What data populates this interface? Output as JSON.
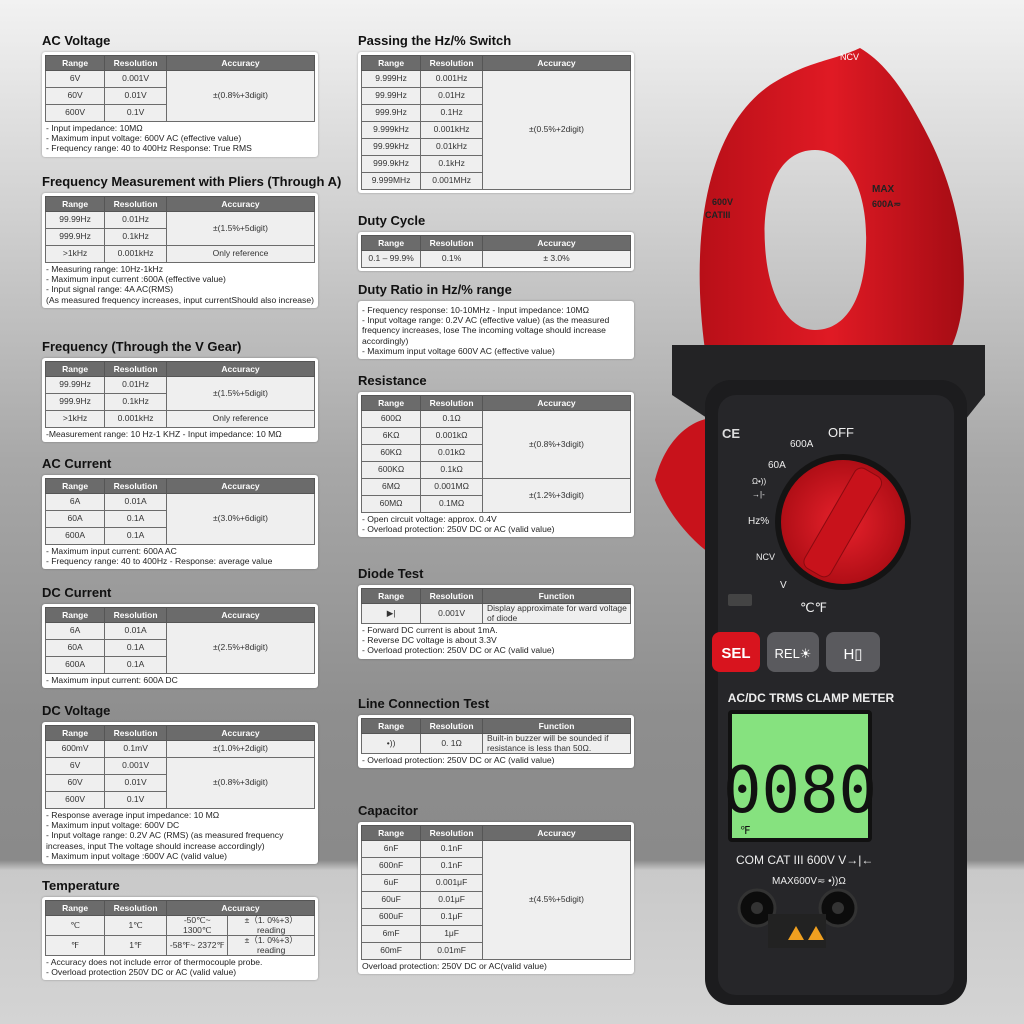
{
  "left": [
    {
      "title": "AC Voltage",
      "headers": [
        {
          "text": "Range"
        },
        {
          "text": "Resolution"
        },
        {
          "text": "Accuracy"
        }
      ],
      "rows": [
        [
          "6V",
          "0.001V",
          {
            "text": "±(0.8%+3digit)",
            "rowspan": 3
          }
        ],
        [
          "60V",
          "0.01V"
        ],
        [
          "600V",
          "0.1V"
        ]
      ],
      "notes": [
        "- Input impedance: 10MΩ",
        "- Maximum input voltage: 600V AC (effective value)",
        "- Frequency range: 40 to 400Hz      Response: True RMS"
      ]
    },
    {
      "title": "Frequency Measurement with Pliers (Through A)",
      "headers": [
        {
          "text": "Range"
        },
        {
          "text": "Resolution"
        },
        {
          "text": "Accuracy"
        }
      ],
      "rows": [
        [
          "99.99Hz",
          "0.01Hz",
          {
            "text": "±(1.5%+5digit)",
            "rowspan": 2
          }
        ],
        [
          "999.9Hz",
          "0.1kHz"
        ],
        [
          ">1kHz",
          "0.001kHz",
          "Only reference"
        ]
      ],
      "notes": [
        "- Measuring range: 10Hz-1kHz",
        "- Maximum input current :600A (effective value)",
        "- Input signal range: 4A AC(RMS)",
        "(As measured frequency increases, input currentShould also increase)"
      ]
    },
    {
      "title": "Frequency (Through the V Gear)",
      "headers": [
        {
          "text": "Range"
        },
        {
          "text": "Resolution"
        },
        {
          "text": "Accuracy"
        }
      ],
      "rows": [
        [
          "99.99Hz",
          "0.01Hz",
          {
            "text": "±(1.5%+5digit)",
            "rowspan": 2
          }
        ],
        [
          "999.9Hz",
          "0.1kHz"
        ],
        [
          ">1kHz",
          "0.001kHz",
          "Only reference"
        ]
      ],
      "notes": [
        "-Measurement range: 10 Hz-1 KHZ - Input impedance: 10 MΩ"
      ]
    },
    {
      "title": "AC Current",
      "headers": [
        {
          "text": "Range"
        },
        {
          "text": "Resolution"
        },
        {
          "text": "Accuracy"
        }
      ],
      "rows": [
        [
          "6A",
          "0.01A",
          {
            "text": "±(3.0%+6digit)",
            "rowspan": 3
          }
        ],
        [
          "60A",
          "0.1A"
        ],
        [
          "600A",
          "0.1A"
        ]
      ],
      "notes": [
        "- Maximum input current: 600A AC",
        "- Frequency range: 40 to 400Hz - Response: average value"
      ]
    },
    {
      "title": "DC Current",
      "headers": [
        {
          "text": "Range"
        },
        {
          "text": "Resolution"
        },
        {
          "text": "Accuracy"
        }
      ],
      "rows": [
        [
          "6A",
          "0.01A",
          {
            "text": "±(2.5%+8digit)",
            "rowspan": 3
          }
        ],
        [
          "60A",
          "0.1A"
        ],
        [
          "600A",
          "0.1A"
        ]
      ],
      "notes": [
        "- Maximum input current: 600A DC"
      ]
    },
    {
      "title": "DC Voltage",
      "headers": [
        {
          "text": "Range"
        },
        {
          "text": "Resolution"
        },
        {
          "text": "Accuracy"
        }
      ],
      "rows": [
        [
          "600mV",
          "0.1mV",
          "±(1.0%+2digit)"
        ],
        [
          "6V",
          "0.001V",
          {
            "text": "±(0.8%+3digit)",
            "rowspan": 3
          }
        ],
        [
          "60V",
          "0.01V"
        ],
        [
          "600V",
          "0.1V"
        ]
      ],
      "notes": [
        "- Response average input impedance: 10 MΩ",
        "- Maximum input voltage: 600V DC",
        "- Input voltage range: 0.2V AC (RMS) (as measured frequency increases, input The voltage should increase accordingly)",
        "- Maximum input voltage :600V AC (valid value)"
      ]
    },
    {
      "title": "Temperature",
      "headers": [
        {
          "text": "Range"
        },
        {
          "text": "Resolution"
        },
        {
          "text": "Accuracy",
          "colspan": 2
        }
      ],
      "rows": [
        [
          "℃",
          "1℃",
          "-50℃~ 1300℃",
          "±（1. 0%+3） reading"
        ],
        [
          "℉",
          "1℉",
          "-58℉~ 2372℉",
          "±（1. 0%+3） reading"
        ]
      ],
      "notes": [
        "- Accuracy does not include error of thermocouple probe.",
        "- Overload protection 250V DC or AC (valid value)"
      ]
    }
  ],
  "right": [
    {
      "title": "Passing the Hz/% Switch",
      "headers": [
        {
          "text": "Range"
        },
        {
          "text": "Resolution"
        },
        {
          "text": "Accuracy"
        }
      ],
      "rows": [
        [
          "9.999Hz",
          "0.001Hz",
          {
            "text": "±(0.5%+2digit)",
            "rowspan": 7
          }
        ],
        [
          "99.99Hz",
          "0.01Hz"
        ],
        [
          "999.9Hz",
          "0.1Hz"
        ],
        [
          "9.999kHz",
          "0.001kHz"
        ],
        [
          "99.99kHz",
          "0.01kHz"
        ],
        [
          "999.9kHz",
          "0.1kHz"
        ],
        [
          "9.999MHz",
          "0.001MHz"
        ]
      ],
      "notes": []
    },
    {
      "title": "Duty Cycle",
      "headers": [
        {
          "text": "Range"
        },
        {
          "text": "Resolution"
        },
        {
          "text": "Accuracy"
        }
      ],
      "rows": [
        [
          "0.1 –  99.9%",
          "0.1%",
          "± 3.0%"
        ]
      ],
      "notes": []
    },
    {
      "title": "Duty Ratio in Hz/% range",
      "headers": [],
      "rows": [],
      "notes": [
        "- Frequency response: 10-10MHz - Input impedance: 10MΩ",
        "- Input voltage range: 0.2V AC (effective value) (as the measured frequency increases, lose The incoming voltage should increase accordingly)",
        "- Maximum input voltage 600V AC (effective value)"
      ]
    },
    {
      "title": "Resistance",
      "headers": [
        {
          "text": "Range"
        },
        {
          "text": "Resolution"
        },
        {
          "text": "Accuracy"
        }
      ],
      "rows": [
        [
          "600Ω",
          "0.1Ω",
          {
            "text": "±(0.8%+3digit)",
            "rowspan": 4
          }
        ],
        [
          "6KΩ",
          "0.001kΩ"
        ],
        [
          "60KΩ",
          "0.01kΩ"
        ],
        [
          "600KΩ",
          "0.1kΩ"
        ],
        [
          "6MΩ",
          "0.001MΩ",
          {
            "text": "±(1.2%+3digit)",
            "rowspan": 2
          }
        ],
        [
          "60MΩ",
          "0.1MΩ"
        ]
      ],
      "notes": [
        "- Open circuit voltage: approx. 0.4V",
        "- Overload protection: 250V DC or AC (valid value)"
      ]
    },
    {
      "title": "Diode Test",
      "headers": [
        {
          "text": "Range"
        },
        {
          "text": "Resolution"
        },
        {
          "text": "Function"
        }
      ],
      "rows": [
        [
          "▶|",
          "0.001V",
          {
            "text": "Display approximate for ward voltage of diode",
            "left": true
          }
        ]
      ],
      "notes": [
        "- Forward DC current is about 1mA.",
        "- Reverse DC voltage is about 3.3V",
        "- Overload protection: 250V DC or AC (valid value)"
      ]
    },
    {
      "title": "Line Connection Test",
      "headers": [
        {
          "text": "Range"
        },
        {
          "text": "Resolution"
        },
        {
          "text": "Function"
        }
      ],
      "rows": [
        [
          "•))",
          "0. 1Ω",
          {
            "text": "Built-in buzzer will be sounded if resistance is less than 50Ω.",
            "left": true
          }
        ]
      ],
      "notes": [
        "- Overload protection: 250V DC or AC (valid value)"
      ]
    },
    {
      "title": "Capacitor",
      "headers": [
        {
          "text": "Range"
        },
        {
          "text": "Resolution"
        },
        {
          "text": "Accuracy"
        }
      ],
      "rows": [
        [
          "6nF",
          "0.1nF",
          {
            "text": "±(4.5%+5digit)",
            "rowspan": 7
          }
        ],
        [
          "600nF",
          "0.1nF"
        ],
        [
          "6uF",
          "0.001μF"
        ],
        [
          "60uF",
          "0.01μF"
        ],
        [
          "600uF",
          "0.1μF"
        ],
        [
          "6mF",
          "1μF"
        ],
        [
          "60mF",
          "0.01mF"
        ]
      ],
      "notes": [
        "Overload protection: 250V DC or AC(valid value)"
      ]
    }
  ],
  "meter": {
    "ncv": "NCV",
    "cat_left": "600V",
    "cat_left2": "CATIII",
    "max_right": "MAX",
    "max_right2": "600A≂",
    "dial": {
      "off": "OFF",
      "a600": "600A",
      "a60": "60A",
      "ohm": "Ω•))",
      "diode": "→|-",
      "hz": "Hz%",
      "ncv": "NCV",
      "v": "V",
      "temp": "℃℉"
    },
    "ce": "CE",
    "buttons": {
      "sel": "SEL",
      "rel": "REL☀",
      "hold": "H▯"
    },
    "model": "AC/DC TRMS CLAMP METER",
    "display": "0080",
    "display_unit": "℉",
    "jack_label1": "COM CAT III 600V V→|←",
    "jack_label2": "MAX600V≂  •))Ω",
    "colors": {
      "red": "#d8141e",
      "body": "#1c1c1e",
      "lcd": "#7fe07a"
    }
  }
}
